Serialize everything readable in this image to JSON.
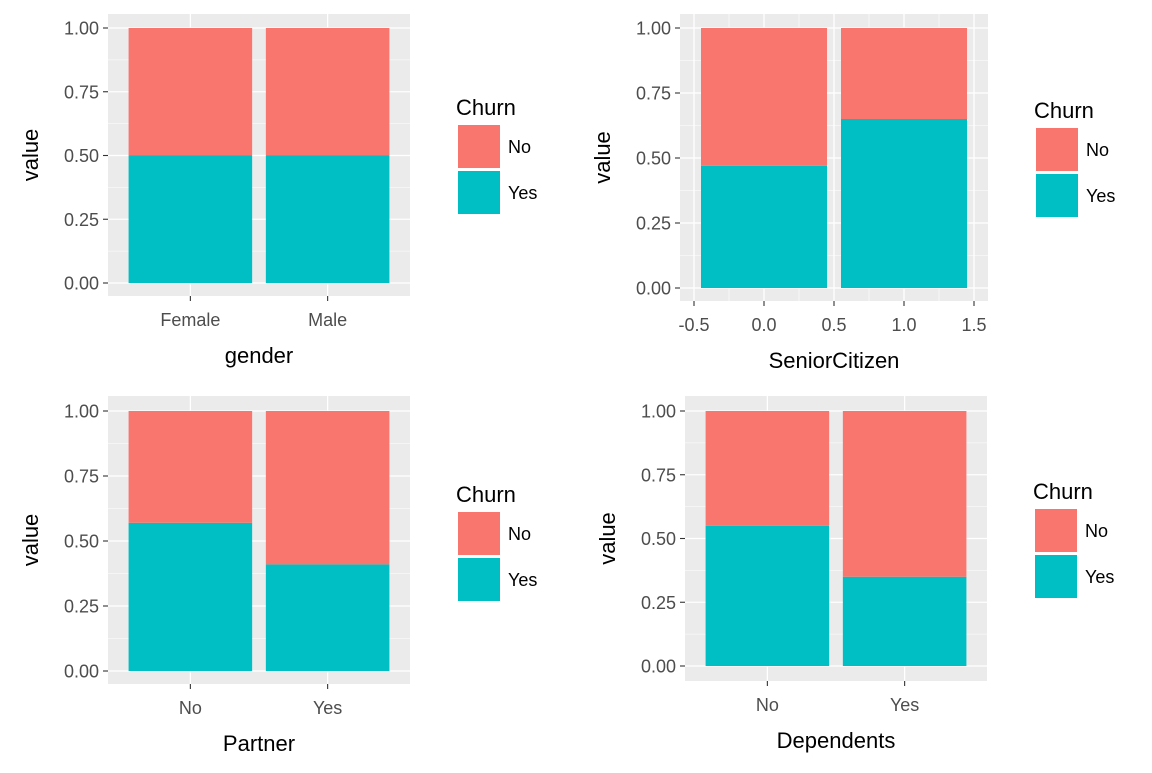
{
  "colors": {
    "No": "#F8766D",
    "Yes": "#00BFC4",
    "panel": "#EBEBEB",
    "grid": "#FFFFFF",
    "tick_text": "#4D4D4D",
    "axis_text": "#000000"
  },
  "legend_title": "Churn",
  "legend_keys": [
    "No",
    "Yes"
  ],
  "chart_data": [
    {
      "type": "bar",
      "stacked": true,
      "xlabel": "gender",
      "ylabel": "value",
      "x_type": "discrete",
      "categories": [
        "Female",
        "Male"
      ],
      "series": [
        {
          "name": "No",
          "values": [
            0.5,
            0.5
          ]
        },
        {
          "name": "Yes",
          "values": [
            0.5,
            0.5
          ]
        }
      ],
      "ylim": [
        0,
        1
      ],
      "yticks": [
        "0.00",
        "0.25",
        "0.50",
        "0.75",
        "1.00"
      ],
      "grid": true,
      "legend": "right"
    },
    {
      "type": "bar",
      "stacked": true,
      "xlabel": "SeniorCitizen",
      "ylabel": "value",
      "x_type": "continuous",
      "x": [
        0,
        1
      ],
      "xlim": [
        -0.5,
        1.5
      ],
      "xticks": [
        "-0.5",
        "0.0",
        "0.5",
        "1.0",
        "1.5"
      ],
      "series": [
        {
          "name": "No",
          "values": [
            0.53,
            0.35
          ]
        },
        {
          "name": "Yes",
          "values": [
            0.47,
            0.65
          ]
        }
      ],
      "ylim": [
        0,
        1
      ],
      "yticks": [
        "0.00",
        "0.25",
        "0.50",
        "0.75",
        "1.00"
      ],
      "grid": true,
      "legend": "right"
    },
    {
      "type": "bar",
      "stacked": true,
      "xlabel": "Partner",
      "ylabel": "value",
      "x_type": "discrete",
      "categories": [
        "No",
        "Yes"
      ],
      "series": [
        {
          "name": "No",
          "values": [
            0.43,
            0.59
          ]
        },
        {
          "name": "Yes",
          "values": [
            0.57,
            0.41
          ]
        }
      ],
      "ylim": [
        0,
        1
      ],
      "yticks": [
        "0.00",
        "0.25",
        "0.50",
        "0.75",
        "1.00"
      ],
      "grid": true,
      "legend": "right"
    },
    {
      "type": "bar",
      "stacked": true,
      "xlabel": "Dependents",
      "ylabel": "value",
      "x_type": "discrete",
      "categories": [
        "No",
        "Yes"
      ],
      "series": [
        {
          "name": "No",
          "values": [
            0.45,
            0.65
          ]
        },
        {
          "name": "Yes",
          "values": [
            0.55,
            0.35
          ]
        }
      ],
      "ylim": [
        0,
        1
      ],
      "yticks": [
        "0.00",
        "0.25",
        "0.50",
        "0.75",
        "1.00"
      ],
      "grid": true,
      "legend": "right"
    }
  ]
}
